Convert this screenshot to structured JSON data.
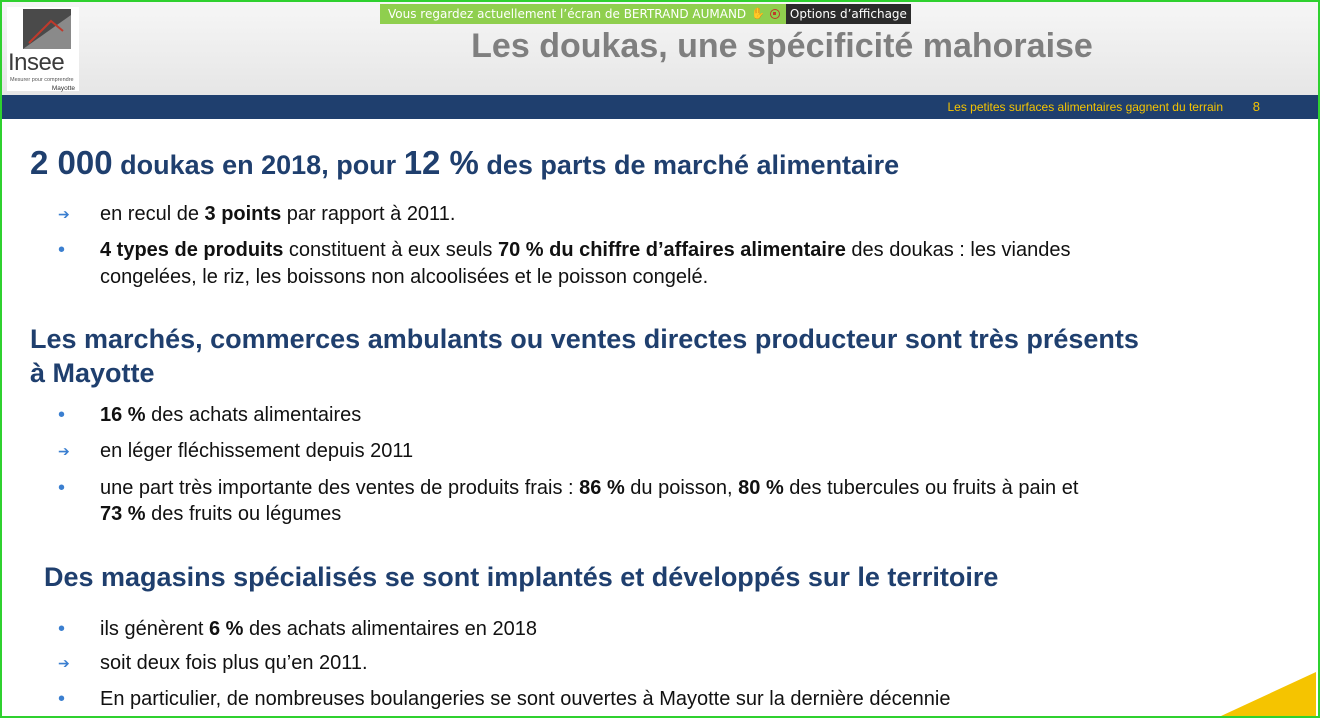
{
  "screen_share": {
    "message": "Vous regardez actuellement l’écran de BERTRAND AUMAND",
    "options_label": "Options d’affichage"
  },
  "logo": {
    "name": "Insee",
    "tagline": "Mesurer pour comprendre",
    "region": "Mayotte"
  },
  "slide": {
    "title": "Les doukas, une spécificité mahoraise",
    "subtitle": "Les petites surfaces alimentaires gagnent du terrain",
    "page_number": "8"
  },
  "sections": {
    "doukas": {
      "h_num1": "2 000",
      "h_text1": " doukas en 2018, pour ",
      "h_num2": "12 %",
      "h_text2": " des parts de marché alimentaire",
      "b1_t1": "en recul de ",
      "b1_b1": "3 points",
      "b1_t2": " par rapport à 2011.",
      "b2_b1": "4 types de produits",
      "b2_t1": " constituent à eux seuls ",
      "b2_b2": "70 % du chiffre d’affaires alimentaire",
      "b2_t2": " des doukas : les viandes",
      "b2_line2": "congelées, le riz, les boissons non alcoolisées et le poisson congelé."
    },
    "marches": {
      "heading_line1": "Les marchés, commerces ambulants ou ventes directes producteur sont très présents",
      "heading_line2": "à Mayotte",
      "b1_b1": "16 %",
      "b1_t1": " des achats alimentaires",
      "b2_t1": "en léger fléchissement depuis 2011",
      "b3_t1": "une part très importante des ventes de produits frais : ",
      "b3_b1": "86 %",
      "b3_t2": " du poisson, ",
      "b3_b2": "80 %",
      "b3_t3": " des tubercules ou fruits à pain et",
      "b3_b3": "73 %",
      "b3_t4": " des fruits ou légumes"
    },
    "magasins": {
      "heading": "Des magasins spécialisés se sont implantés et développés sur le territoire",
      "b1_t1": "ils génèrent ",
      "b1_b1": "6 %",
      "b1_t2": " des achats alimentaires en 2018",
      "b2_t1": "soit deux fois plus qu’en 2011.",
      "b3_t1": "En particulier, de nombreuses boulangeries se sont ouvertes à Mayotte sur la dernière décennie"
    }
  },
  "markers": {
    "arrow": "➔",
    "dot": "•"
  },
  "colors": {
    "accent_blue": "#1f3f6e",
    "accent_yellow": "#f5c400",
    "bullet_blue": "#3b7fd0",
    "share_green": "#8fcf4e",
    "frame_green": "#2fd12f"
  }
}
